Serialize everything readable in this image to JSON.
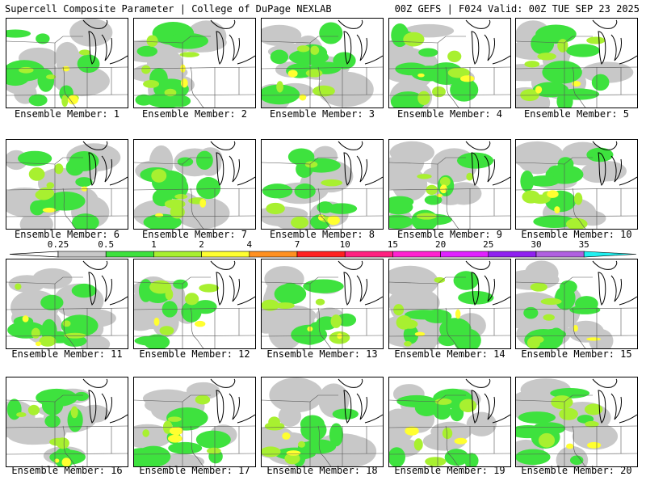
{
  "header": {
    "left": "Supercell Composite Parameter | College of DuPage NEXLAB",
    "right": "00Z GEFS | F024 Valid: 00Z TUE SEP 23 2025"
  },
  "caption_prefix": "Ensemble Member: ",
  "members": [
    1,
    2,
    3,
    4,
    5,
    6,
    7,
    8,
    9,
    10,
    11,
    12,
    13,
    14,
    15,
    16,
    17,
    18,
    19,
    20
  ],
  "colorbar": {
    "levels": [
      "0.25",
      "0.5",
      "1",
      "2",
      "4",
      "7",
      "10",
      "15",
      "20",
      "25",
      "30",
      "35"
    ],
    "colors": [
      "#c8c8c8",
      "#3ee23e",
      "#a8f030",
      "#ffff30",
      "#ff9020",
      "#ff2020",
      "#ff2080",
      "#ff20d0",
      "#e020ff",
      "#9020f0",
      "#b060e0",
      "#20f0f0"
    ]
  }
}
